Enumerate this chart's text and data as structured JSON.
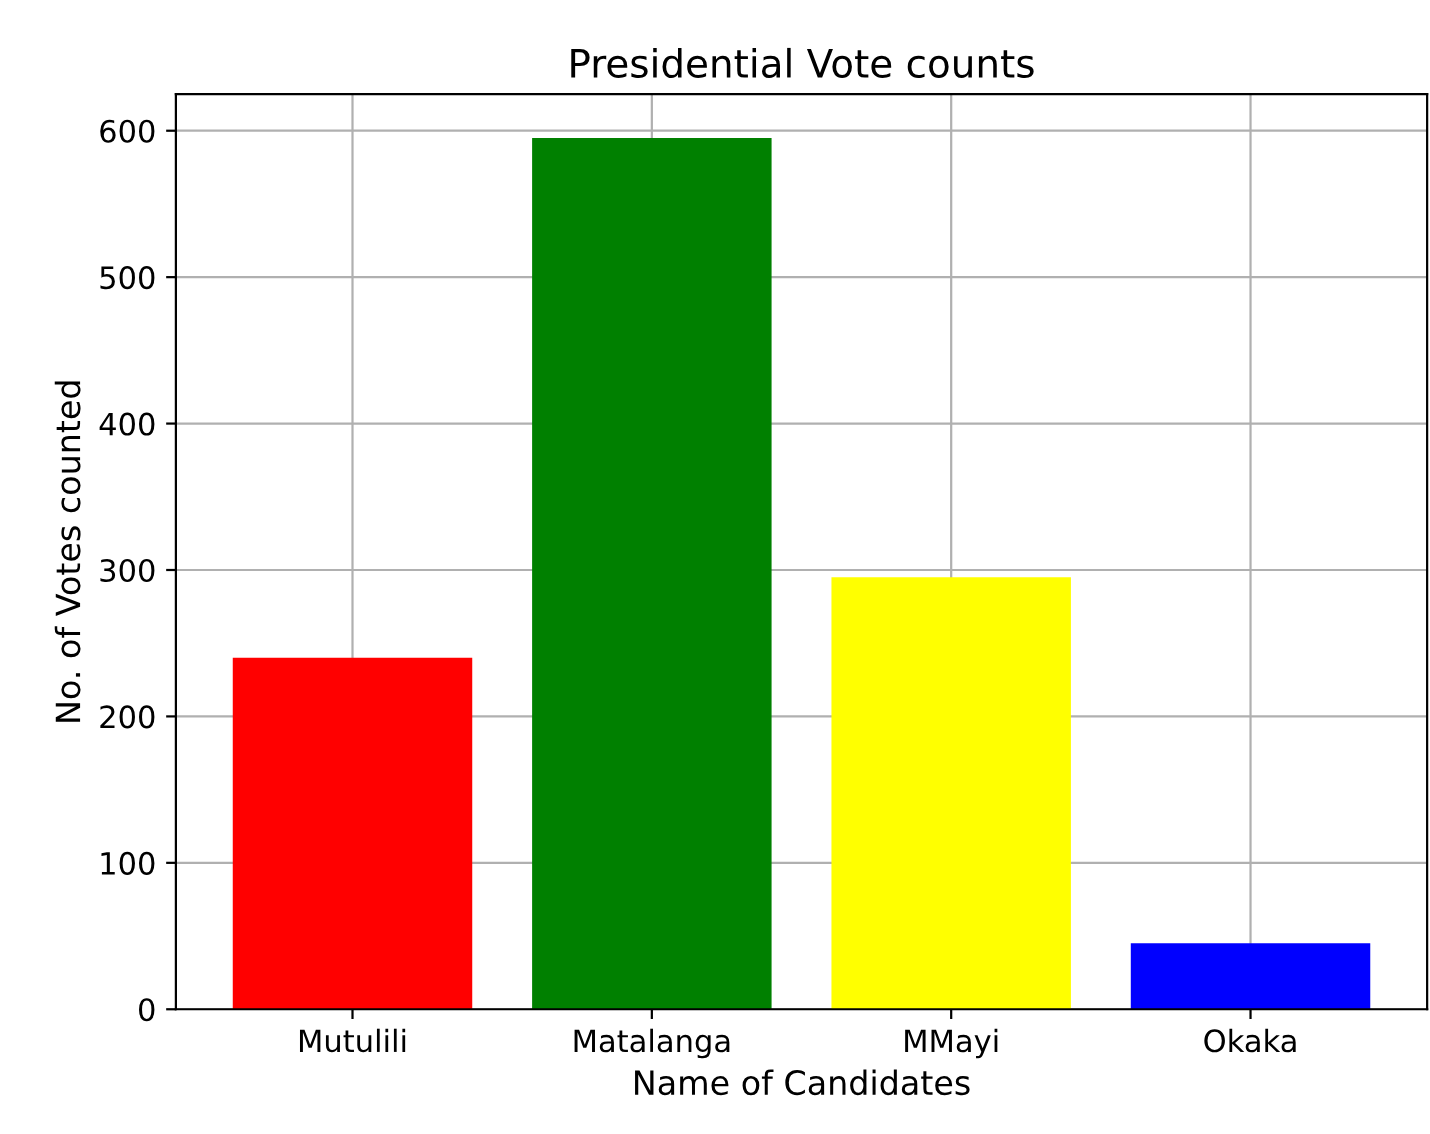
{
  "chart_data": {
    "type": "bar",
    "title": "Presidential Vote counts",
    "xlabel": "Name of Candidates",
    "ylabel": "No. of Votes counted",
    "categories": [
      "Mutulili",
      "Matalanga",
      "MMayi",
      "Okaka"
    ],
    "values": [
      240,
      595,
      295,
      45
    ],
    "colors": [
      "#ff0000",
      "#008000",
      "#ffff00",
      "#0000ff"
    ],
    "ylim": [
      0,
      625
    ],
    "yticks": [
      0,
      100,
      200,
      300,
      400,
      500,
      600
    ],
    "grid": true
  }
}
